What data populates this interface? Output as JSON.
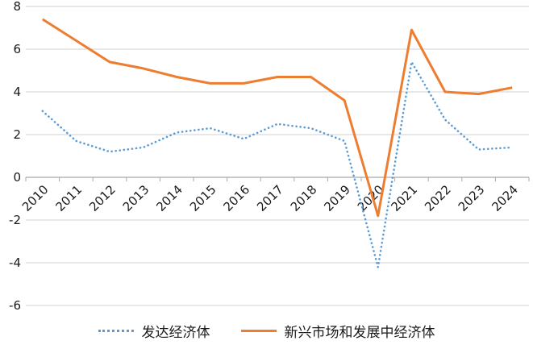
{
  "chart_data": {
    "type": "line",
    "categories": [
      "2010",
      "2011",
      "2012",
      "2013",
      "2014",
      "2015",
      "2016",
      "2017",
      "2018",
      "2019",
      "2020",
      "2021",
      "2022",
      "2023",
      "2024"
    ],
    "ylim": [
      -6,
      8
    ],
    "yticks": [
      -6,
      -4,
      -2,
      0,
      2,
      4,
      6,
      8
    ],
    "grid": "horizontal",
    "legend": "bottom",
    "series": [
      {
        "name": "发达经济体",
        "style": "dotted",
        "color": "#5B9BD5",
        "values": [
          3.1,
          1.7,
          1.2,
          1.4,
          2.1,
          2.3,
          1.8,
          2.5,
          2.3,
          1.7,
          -4.2,
          5.4,
          2.7,
          1.3,
          1.4
        ]
      },
      {
        "name": "新兴市场和发展中经济体",
        "style": "solid",
        "color": "#ED7D31",
        "values": [
          7.4,
          6.4,
          5.4,
          5.1,
          4.7,
          4.4,
          4.4,
          4.7,
          4.7,
          3.6,
          -1.8,
          6.9,
          4.0,
          3.9,
          4.2
        ]
      }
    ]
  }
}
